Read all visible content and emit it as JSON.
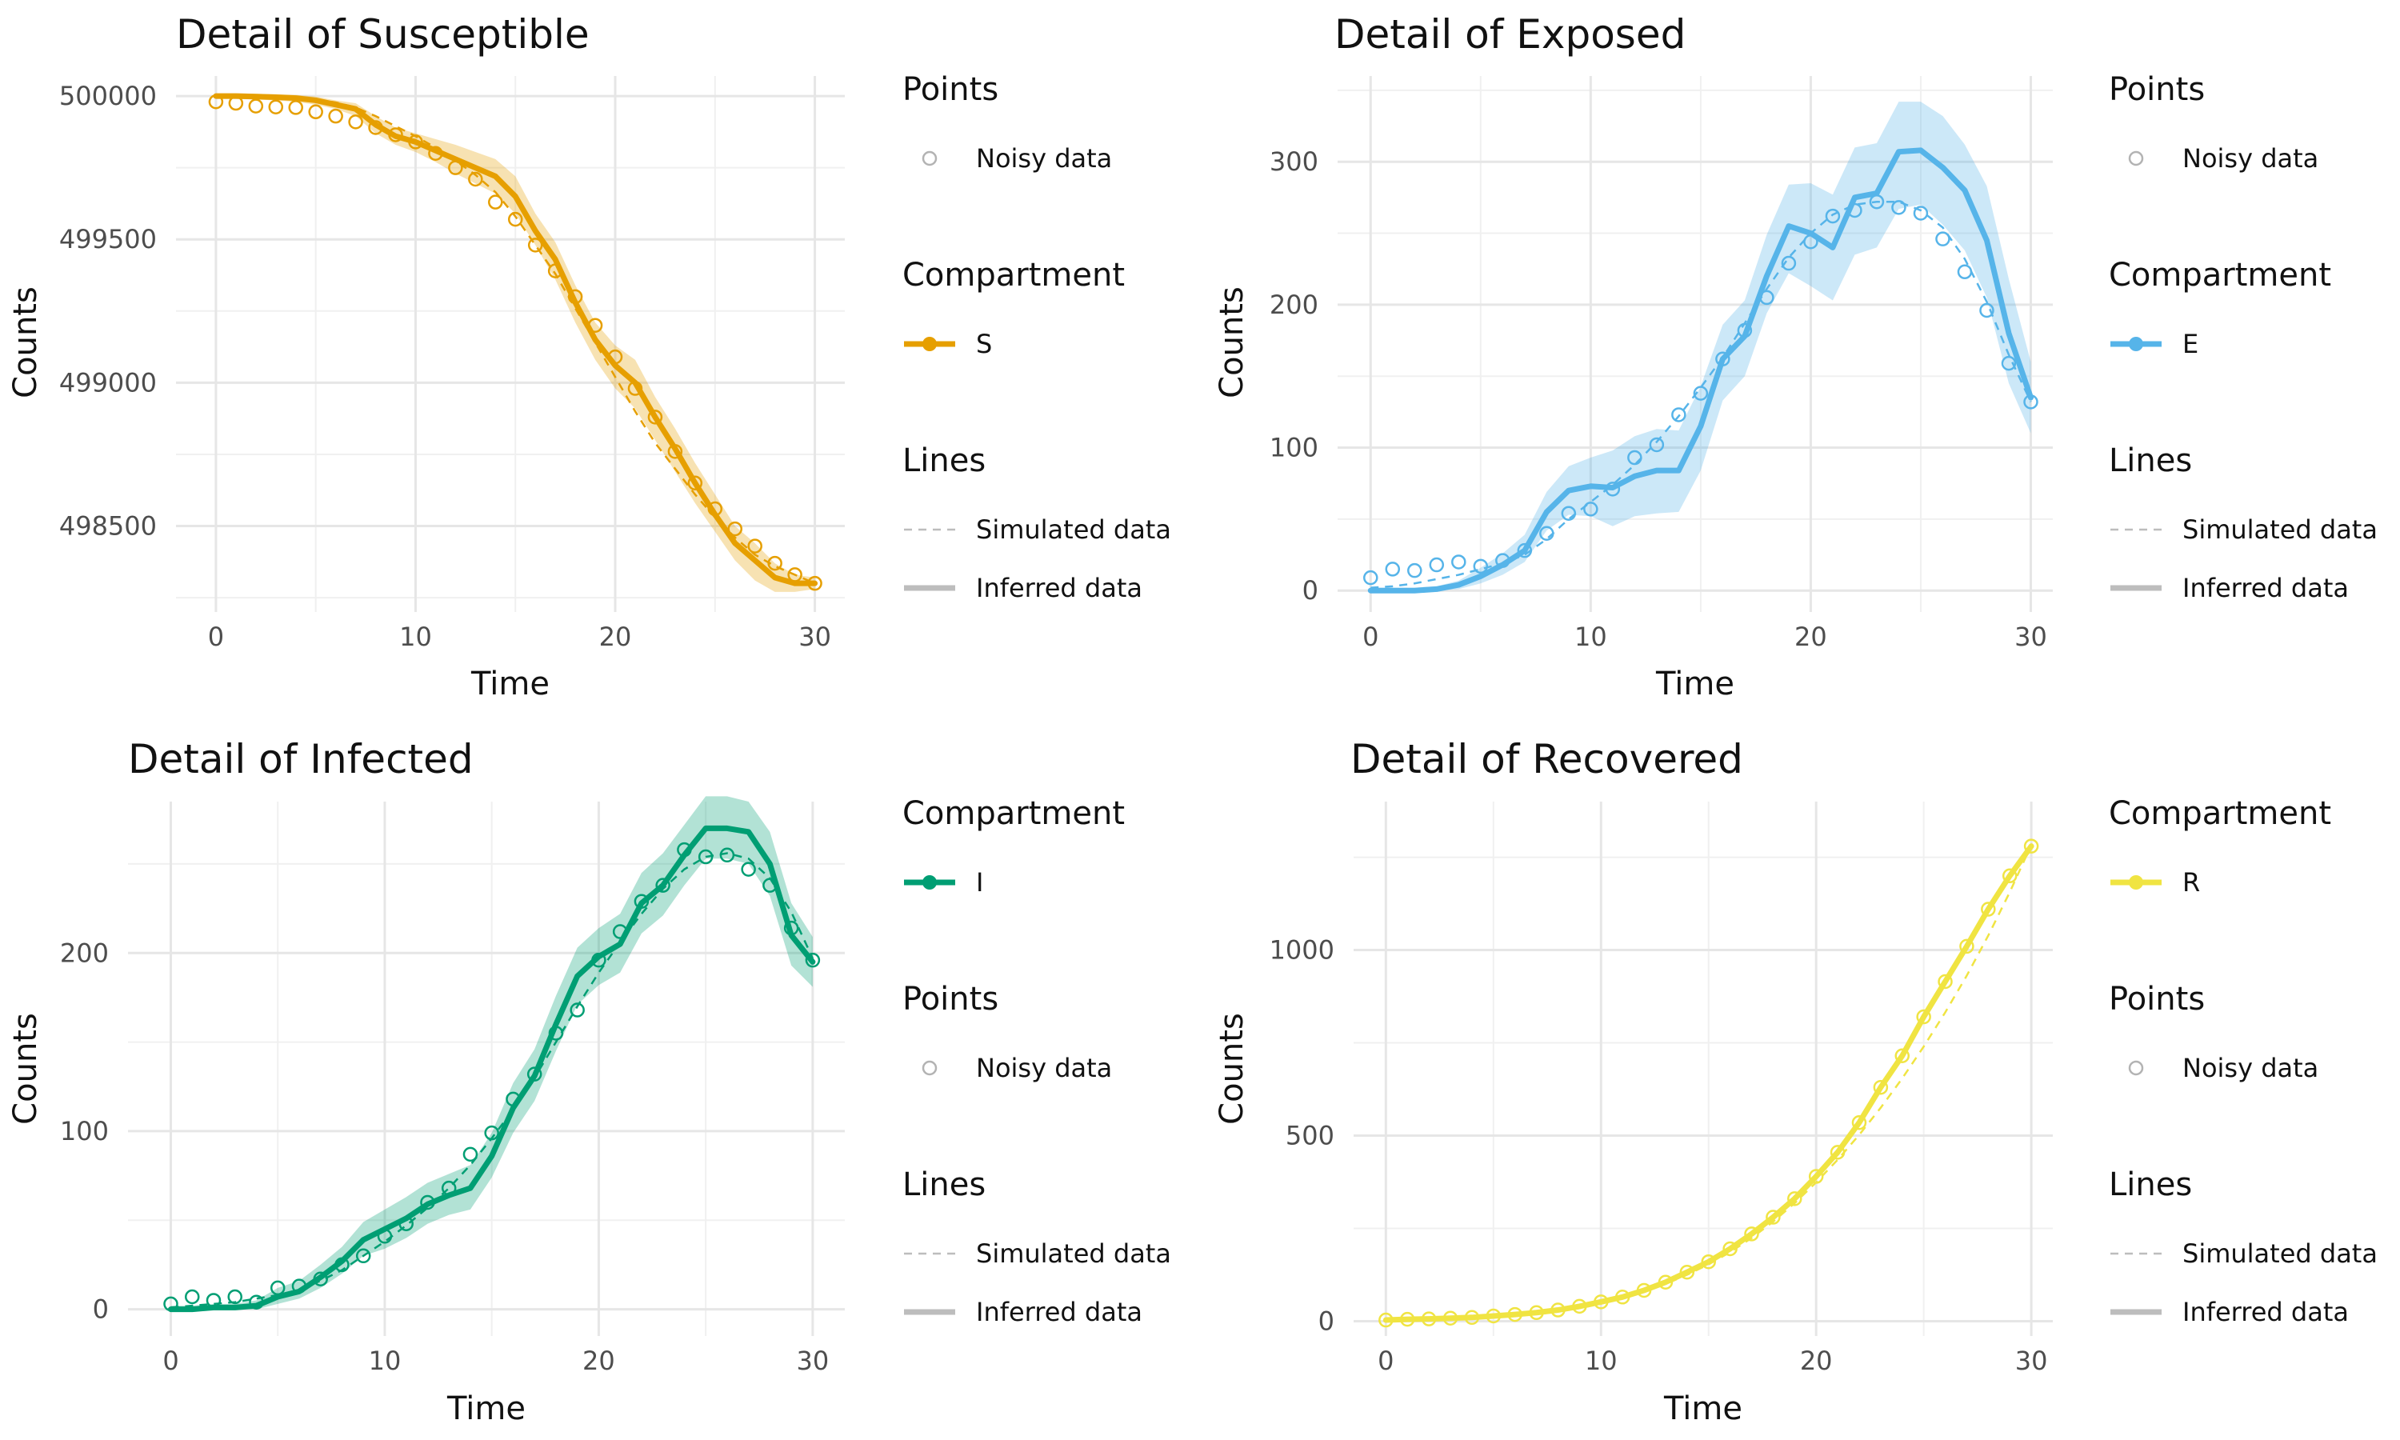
{
  "chart_data": [
    {
      "type": "line",
      "title": "Detail of Susceptible",
      "xlabel": "Time",
      "ylabel": "Counts",
      "xlim": [
        -2,
        31.5
      ],
      "ylim": [
        498200,
        500070
      ],
      "xticks": [
        0,
        10,
        20,
        30
      ],
      "yticks": [
        498500,
        499000,
        499500,
        500000
      ],
      "color": "#E69F00",
      "legend_position": "right",
      "legend": [
        {
          "kind": "points",
          "title": "Points",
          "label": "Noisy data"
        },
        {
          "kind": "compartment",
          "title": "Compartment",
          "label": "S"
        },
        {
          "kind": "lines",
          "title": "Lines",
          "labels": [
            "Simulated data",
            "Inferred data"
          ]
        }
      ],
      "series": {
        "simulated": [
          499998,
          499997,
          499996,
          499995,
          499993,
          499988,
          499978,
          499960,
          499930,
          499895,
          499860,
          499820,
          499775,
          499725,
          499665,
          499580,
          499480,
          499380,
          499260,
          499140,
          499020,
          498900,
          498790,
          498700,
          498610,
          498530,
          498460,
          498400,
          498360,
          498330,
          498300
        ],
        "noisy": [
          499980,
          499975,
          499965,
          499962,
          499960,
          499945,
          499930,
          499910,
          499890,
          499865,
          499840,
          499800,
          499750,
          499710,
          499630,
          499570,
          499480,
          499390,
          499300,
          499200,
          499090,
          498980,
          498880,
          498760,
          498650,
          498560,
          498490,
          498430,
          498370,
          498330,
          498300
        ],
        "inferred": [
          500000,
          500000,
          499998,
          499996,
          499993,
          499985,
          499970,
          499955,
          499900,
          499860,
          499840,
          499810,
          499780,
          499750,
          499720,
          499650,
          499530,
          499430,
          499280,
          499150,
          499060,
          499000,
          498880,
          498770,
          498650,
          498540,
          498440,
          498380,
          498320,
          498300,
          498300
        ],
        "lower": [
          499990,
          499990,
          499988,
          499985,
          499980,
          499970,
          499955,
          499930,
          499870,
          499830,
          499805,
          499770,
          499730,
          499695,
          499660,
          499590,
          499480,
          499360,
          499210,
          499080,
          498980,
          498910,
          498800,
          498690,
          498580,
          498480,
          498380,
          498310,
          498270,
          498270,
          498280
        ],
        "upper": [
          500010,
          500010,
          500008,
          500006,
          500004,
          499998,
          499985,
          499975,
          499930,
          499890,
          499870,
          499850,
          499830,
          499805,
          499780,
          499720,
          499590,
          499490,
          499340,
          499210,
          499130,
          499080,
          498950,
          498840,
          498720,
          498610,
          498500,
          498440,
          498370,
          498330,
          498320
        ]
      }
    },
    {
      "type": "line",
      "title": "Detail of Exposed",
      "xlabel": "Time",
      "ylabel": "Counts",
      "xlim": [
        -1.5,
        31
      ],
      "ylim": [
        -15,
        360
      ],
      "xticks": [
        0,
        10,
        20,
        30
      ],
      "yticks": [
        0,
        100,
        200,
        300
      ],
      "color": "#56B4E9",
      "legend_position": "right",
      "legend": [
        {
          "kind": "points",
          "title": "Points",
          "label": "Noisy data"
        },
        {
          "kind": "compartment",
          "title": "Compartment",
          "label": "E"
        },
        {
          "kind": "lines",
          "title": "Lines",
          "labels": [
            "Simulated data",
            "Inferred data"
          ]
        }
      ],
      "series": {
        "simulated": [
          2,
          3,
          5,
          8,
          11,
          15,
          19,
          25,
          36,
          50,
          62,
          74,
          88,
          104,
          122,
          142,
          163,
          187,
          211,
          233,
          250,
          263,
          270,
          272,
          272,
          266,
          254,
          232,
          202,
          165,
          132
        ],
        "noisy": [
          9,
          15,
          14,
          18,
          20,
          17,
          21,
          28,
          40,
          54,
          57,
          71,
          93,
          102,
          123,
          138,
          162,
          182,
          205,
          229,
          244,
          262,
          266,
          272,
          268,
          264,
          246,
          223,
          196,
          159,
          132
        ],
        "inferred": [
          0,
          0,
          0,
          1,
          4,
          10,
          18,
          28,
          55,
          70,
          73,
          72,
          80,
          84,
          84,
          115,
          162,
          178,
          220,
          255,
          250,
          240,
          275,
          278,
          307,
          308,
          296,
          280,
          245,
          180,
          135
        ],
        "lower": [
          0,
          0,
          0,
          0,
          1,
          5,
          11,
          20,
          42,
          53,
          52,
          45,
          52,
          54,
          55,
          84,
          133,
          150,
          194,
          222,
          213,
          203,
          235,
          240,
          267,
          270,
          256,
          238,
          205,
          145,
          110
        ],
        "upper": [
          2,
          2,
          2,
          3,
          7,
          16,
          26,
          39,
          69,
          87,
          93,
          98,
          108,
          113,
          112,
          143,
          186,
          203,
          249,
          284,
          285,
          277,
          310,
          313,
          342,
          342,
          332,
          312,
          283,
          218,
          160
        ]
      }
    },
    {
      "type": "line",
      "title": "Detail of Infected",
      "xlabel": "Time",
      "ylabel": "Counts",
      "xlim": [
        -2,
        31.5
      ],
      "ylim": [
        -15,
        285
      ],
      "xticks": [
        0,
        10,
        20,
        30
      ],
      "yticks": [
        0,
        100,
        200
      ],
      "color": "#009E73",
      "legend_position": "right",
      "legend": [
        {
          "kind": "compartment",
          "title": "Compartment",
          "label": "I"
        },
        {
          "kind": "points",
          "title": "Points",
          "label": "Noisy data"
        },
        {
          "kind": "lines",
          "title": "Lines",
          "labels": [
            "Simulated data",
            "Inferred data"
          ]
        }
      ],
      "series": {
        "simulated": [
          1,
          2,
          3,
          4,
          6,
          8,
          11,
          16,
          22,
          30,
          38,
          47,
          57,
          68,
          81,
          96,
          112,
          130,
          150,
          170,
          189,
          206,
          222,
          236,
          247,
          254,
          256,
          253,
          242,
          223,
          197
        ],
        "noisy": [
          3,
          7,
          5,
          7,
          4,
          12,
          13,
          17,
          25,
          30,
          41,
          48,
          60,
          68,
          87,
          99,
          118,
          132,
          155,
          168,
          196,
          212,
          229,
          238,
          258,
          254,
          255,
          247,
          238,
          214,
          196
        ],
        "inferred": [
          0,
          0,
          1,
          1,
          2,
          7,
          10,
          18,
          27,
          39,
          45,
          51,
          59,
          64,
          68,
          86,
          113,
          131,
          160,
          187,
          198,
          205,
          228,
          238,
          255,
          270,
          270,
          268,
          250,
          210,
          195
        ],
        "lower": [
          0,
          0,
          0,
          0,
          0,
          3,
          6,
          12,
          20,
          30,
          34,
          40,
          48,
          53,
          56,
          74,
          99,
          117,
          145,
          171,
          182,
          189,
          211,
          221,
          238,
          253,
          253,
          250,
          232,
          193,
          181
        ],
        "upper": [
          2,
          2,
          3,
          3,
          5,
          12,
          16,
          25,
          35,
          49,
          56,
          63,
          71,
          76,
          81,
          99,
          127,
          146,
          176,
          203,
          214,
          222,
          245,
          256,
          272,
          288,
          288,
          285,
          268,
          228,
          209
        ]
      }
    },
    {
      "type": "line",
      "title": "Detail of Recovered",
      "xlabel": "Time",
      "ylabel": "Counts",
      "xlim": [
        -1.5,
        31
      ],
      "ylim": [
        -40,
        1400
      ],
      "xticks": [
        0,
        10,
        20,
        30
      ],
      "yticks": [
        0,
        500,
        1000
      ],
      "color": "#F0E442",
      "legend_position": "right",
      "legend": [
        {
          "kind": "compartment",
          "title": "Compartment",
          "label": "R"
        },
        {
          "kind": "points",
          "title": "Points",
          "label": "Noisy data"
        },
        {
          "kind": "lines",
          "title": "Lines",
          "labels": [
            "Simulated data",
            "Inferred data"
          ]
        }
      ],
      "series": {
        "simulated": [
          0,
          1,
          3,
          5,
          7,
          10,
          14,
          19,
          26,
          35,
          47,
          61,
          79,
          100,
          125,
          153,
          186,
          224,
          268,
          318,
          374,
          435,
          502,
          575,
          654,
          740,
          832,
          931,
          1039,
          1156,
          1283
        ],
        "noisy": [
          3,
          5,
          6,
          8,
          10,
          14,
          18,
          23,
          30,
          40,
          52,
          65,
          83,
          105,
          132,
          160,
          195,
          235,
          280,
          330,
          390,
          455,
          535,
          630,
          715,
          820,
          915,
          1010,
          1110,
          1200,
          1280
        ],
        "inferred": [
          3,
          5,
          6,
          8,
          10,
          14,
          18,
          23,
          30,
          40,
          52,
          65,
          83,
          105,
          132,
          160,
          195,
          235,
          280,
          330,
          390,
          455,
          535,
          630,
          715,
          820,
          915,
          1010,
          1110,
          1200,
          1280
        ]
      }
    }
  ]
}
